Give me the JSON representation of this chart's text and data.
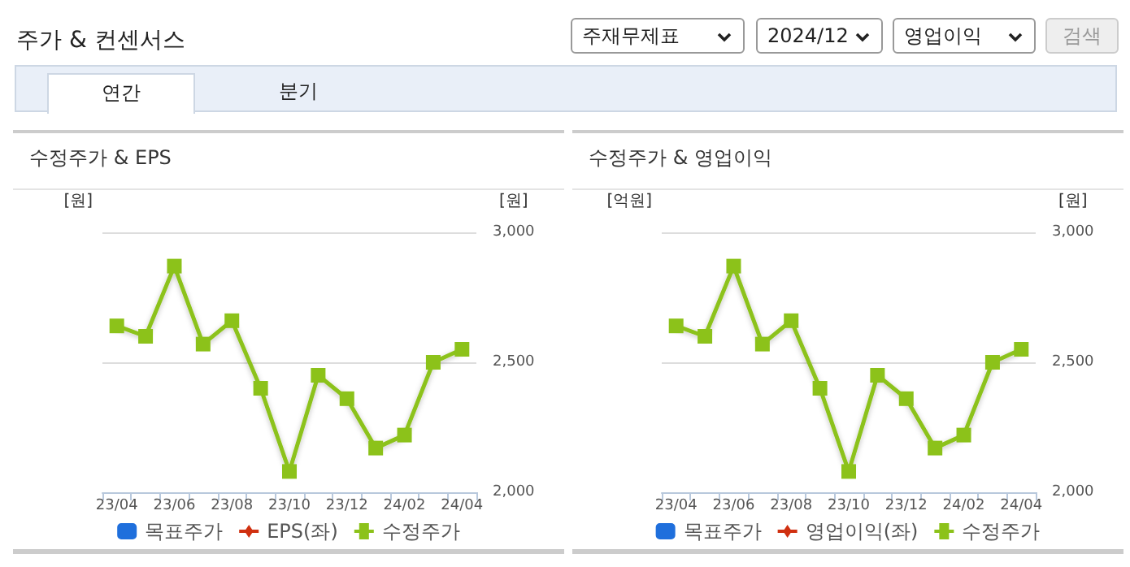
{
  "chart_data": [
    {
      "type": "other",
      "title": "주가 & 컨센서스",
      "annotations": [
        "주재무제표",
        "2024/12",
        "영업이익",
        "검색",
        "연간",
        "분기"
      ]
    },
    {
      "type": "line",
      "title": "수정주가 & EPS",
      "ylabel": "[원]",
      "y2label": "[원]",
      "categories": [
        "23/04",
        null,
        "23/06",
        null,
        "23/08",
        null,
        "23/10",
        null,
        "23/12",
        null,
        "24/02",
        null,
        "24/04"
      ],
      "series": [
        {
          "name": "목표주가",
          "type": "bar",
          "color": "#1f6fdc",
          "values": [
            null,
            null,
            null,
            null,
            null,
            null,
            null,
            null,
            null,
            null,
            null,
            null,
            null
          ]
        },
        {
          "name": "EPS(좌)",
          "type": "line",
          "marker": "diamond",
          "color": "#d03010",
          "values": [
            null,
            null,
            null,
            null,
            null,
            null,
            null,
            null,
            null,
            null,
            null,
            null,
            null
          ]
        },
        {
          "name": "수정주가",
          "type": "line",
          "marker": "square",
          "axis": "y2",
          "color": "#8cc21a",
          "values": [
            2640,
            2600,
            2870,
            2570,
            2660,
            2400,
            2080,
            2450,
            2360,
            2170,
            2220,
            2500,
            2550
          ]
        }
      ],
      "y2lim": [
        2000,
        3000
      ],
      "y2ticks": [
        {
          "value": 2000,
          "label": "2,000"
        },
        {
          "value": 2500,
          "label": "2,500"
        },
        {
          "value": 3000,
          "label": "3,000"
        }
      ],
      "grid": "y",
      "legend": "bottom"
    },
    {
      "type": "line",
      "title": "수정주가 & 영업이익",
      "ylabel": "[억원]",
      "y2label": "[원]",
      "categories": [
        "23/04",
        null,
        "23/06",
        null,
        "23/08",
        null,
        "23/10",
        null,
        "23/12",
        null,
        "24/02",
        null,
        "24/04"
      ],
      "series": [
        {
          "name": "목표주가",
          "type": "bar",
          "color": "#1f6fdc",
          "values": [
            null,
            null,
            null,
            null,
            null,
            null,
            null,
            null,
            null,
            null,
            null,
            null,
            null
          ]
        },
        {
          "name": "영업이익(좌)",
          "type": "line",
          "marker": "diamond",
          "color": "#d03010",
          "values": [
            null,
            null,
            null,
            null,
            null,
            null,
            null,
            null,
            null,
            null,
            null,
            null,
            null
          ]
        },
        {
          "name": "수정주가",
          "type": "line",
          "marker": "square",
          "axis": "y2",
          "color": "#8cc21a",
          "values": [
            2640,
            2600,
            2870,
            2570,
            2660,
            2400,
            2080,
            2450,
            2360,
            2170,
            2220,
            2500,
            2550
          ]
        }
      ],
      "y2lim": [
        2000,
        3000
      ],
      "y2ticks": [
        {
          "value": 2000,
          "label": "2,000"
        },
        {
          "value": 2500,
          "label": "2,500"
        },
        {
          "value": 3000,
          "label": "3,000"
        }
      ],
      "grid": "y",
      "legend": "bottom"
    }
  ]
}
